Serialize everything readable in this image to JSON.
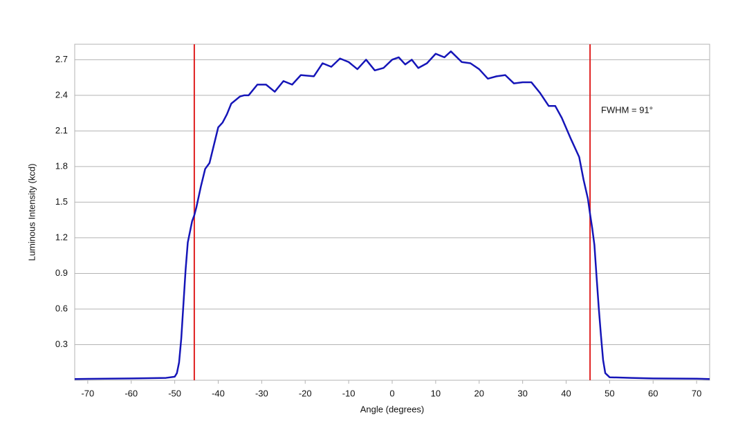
{
  "chart_data": {
    "type": "line",
    "x_label": "Angle (degrees)",
    "y_label": "Luminous Intensity (kcd)",
    "annotation": "FWHM = 91°",
    "x": [
      -73,
      -70,
      -60,
      -52,
      -50,
      -49.5,
      -49,
      -48.5,
      -48,
      -47.5,
      -47,
      -46,
      -45.5,
      -45,
      -44,
      -43,
      -42,
      -41,
      -40,
      -39,
      -38,
      -37,
      -35,
      -34,
      -33,
      -31,
      -29,
      -27,
      -25,
      -23,
      -21,
      -18,
      -16,
      -14,
      -12,
      -10,
      -8,
      -6,
      -4,
      -2,
      0,
      1.5,
      3,
      4.5,
      6,
      8,
      10,
      12,
      13.5,
      16,
      18,
      20,
      22,
      24,
      26,
      28,
      30,
      32,
      34,
      36,
      37.5,
      39,
      41,
      43,
      44,
      45,
      45.5,
      46,
      46.5,
      47,
      47.5,
      48,
      48.5,
      49,
      50,
      55,
      60,
      70,
      73
    ],
    "series": [
      {
        "color": "#1515b8",
        "values": [
          0.01,
          0.012,
          0.015,
          0.02,
          0.03,
          0.06,
          0.15,
          0.35,
          0.64,
          0.93,
          1.16,
          1.34,
          1.39,
          1.46,
          1.63,
          1.78,
          1.83,
          1.98,
          2.13,
          2.17,
          2.24,
          2.33,
          2.39,
          2.4,
          2.4,
          2.49,
          2.49,
          2.43,
          2.52,
          2.49,
          2.57,
          2.56,
          2.67,
          2.64,
          2.71,
          2.68,
          2.62,
          2.7,
          2.61,
          2.63,
          2.7,
          2.72,
          2.66,
          2.7,
          2.63,
          2.67,
          2.75,
          2.72,
          2.77,
          2.68,
          2.67,
          2.62,
          2.54,
          2.56,
          2.57,
          2.5,
          2.51,
          2.51,
          2.42,
          2.31,
          2.31,
          2.21,
          2.04,
          1.88,
          1.69,
          1.53,
          1.4,
          1.28,
          1.14,
          0.87,
          0.61,
          0.38,
          0.17,
          0.06,
          0.025,
          0.02,
          0.015,
          0.013,
          0.01
        ]
      }
    ],
    "vlines": [
      -45.5,
      45.5
    ],
    "vline_color": "#e02020",
    "xlim": [
      -73,
      73
    ],
    "ylim": [
      0,
      2.83
    ],
    "xticks": [
      -70,
      -60,
      -50,
      -40,
      -30,
      -20,
      -10,
      0,
      10,
      20,
      30,
      40,
      50,
      60,
      70
    ],
    "yticks": [
      0.3,
      0.6,
      0.9,
      1.2,
      1.5,
      1.8,
      2.1,
      2.4,
      2.7
    ],
    "grid": true
  }
}
